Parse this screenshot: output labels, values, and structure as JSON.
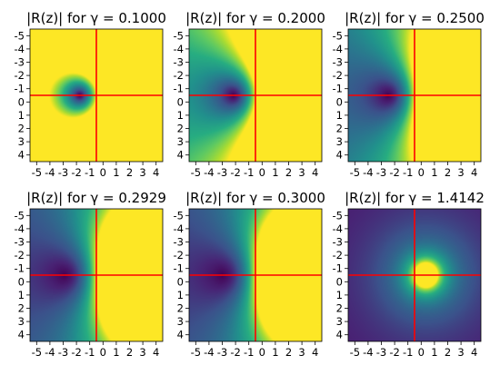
{
  "chart_data": [
    {
      "type": "heatmap",
      "title": "|R(z)| for γ = 0.1000",
      "gamma": 0.1,
      "x_ticks": [
        "-5",
        "-4",
        "-3",
        "-2",
        "-1",
        "0",
        "1",
        "2",
        "3",
        "4"
      ],
      "y_ticks": [
        "-5",
        "-4",
        "-3",
        "-2",
        "-1",
        "0",
        "1",
        "2",
        "3",
        "4"
      ],
      "xlim": [
        -5,
        5
      ],
      "ylim": [
        -5,
        5
      ],
      "axis_lines": {
        "x": 0,
        "y": 0
      }
    },
    {
      "type": "heatmap",
      "title": "|R(z)| for γ = 0.2000",
      "gamma": 0.2,
      "x_ticks": [
        "-5",
        "-4",
        "-3",
        "-2",
        "-1",
        "0",
        "1",
        "2",
        "3",
        "4"
      ],
      "y_ticks": [
        "-5",
        "-4",
        "-3",
        "-2",
        "-1",
        "0",
        "1",
        "2",
        "3",
        "4"
      ],
      "xlim": [
        -5,
        5
      ],
      "ylim": [
        -5,
        5
      ],
      "axis_lines": {
        "x": 0,
        "y": 0
      }
    },
    {
      "type": "heatmap",
      "title": "|R(z)| for γ = 0.2500",
      "gamma": 0.25,
      "x_ticks": [
        "-5",
        "-4",
        "-3",
        "-2",
        "-1",
        "0",
        "1",
        "2",
        "3",
        "4"
      ],
      "y_ticks": [
        "-5",
        "-4",
        "-3",
        "-2",
        "-1",
        "0",
        "1",
        "2",
        "3",
        "4"
      ],
      "xlim": [
        -5,
        5
      ],
      "ylim": [
        -5,
        5
      ],
      "axis_lines": {
        "x": 0,
        "y": 0
      }
    },
    {
      "type": "heatmap",
      "title": "|R(z)| for γ = 0.2929",
      "gamma": 0.2929,
      "x_ticks": [
        "-5",
        "-4",
        "-3",
        "-2",
        "-1",
        "0",
        "1",
        "2",
        "3",
        "4"
      ],
      "y_ticks": [
        "-5",
        "-4",
        "-3",
        "-2",
        "-1",
        "0",
        "1",
        "2",
        "3",
        "4"
      ],
      "xlim": [
        -5,
        5
      ],
      "ylim": [
        -5,
        5
      ],
      "axis_lines": {
        "x": 0,
        "y": 0
      }
    },
    {
      "type": "heatmap",
      "title": "|R(z)| for γ = 0.3000",
      "gamma": 0.3,
      "x_ticks": [
        "-5",
        "-4",
        "-3",
        "-2",
        "-1",
        "0",
        "1",
        "2",
        "3",
        "4"
      ],
      "y_ticks": [
        "-5",
        "-4",
        "-3",
        "-2",
        "-1",
        "0",
        "1",
        "2",
        "3",
        "4"
      ],
      "xlim": [
        -5,
        5
      ],
      "ylim": [
        -5,
        5
      ],
      "axis_lines": {
        "x": 0,
        "y": 0
      }
    },
    {
      "type": "heatmap",
      "title": "|R(z)| for γ = 1.4142",
      "gamma": 1.4142,
      "x_ticks": [
        "-5",
        "-4",
        "-3",
        "-2",
        "-1",
        "0",
        "1",
        "2",
        "3",
        "4"
      ],
      "y_ticks": [
        "-5",
        "-4",
        "-3",
        "-2",
        "-1",
        "0",
        "1",
        "2",
        "3",
        "4"
      ],
      "xlim": [
        -5,
        5
      ],
      "ylim": [
        -5,
        5
      ],
      "axis_lines": {
        "x": 0,
        "y": 0
      }
    }
  ],
  "colors": {
    "axis_line": "#ff0000",
    "colormap": [
      "#440154",
      "#3b528b",
      "#21918c",
      "#5ec962",
      "#fde725"
    ]
  }
}
